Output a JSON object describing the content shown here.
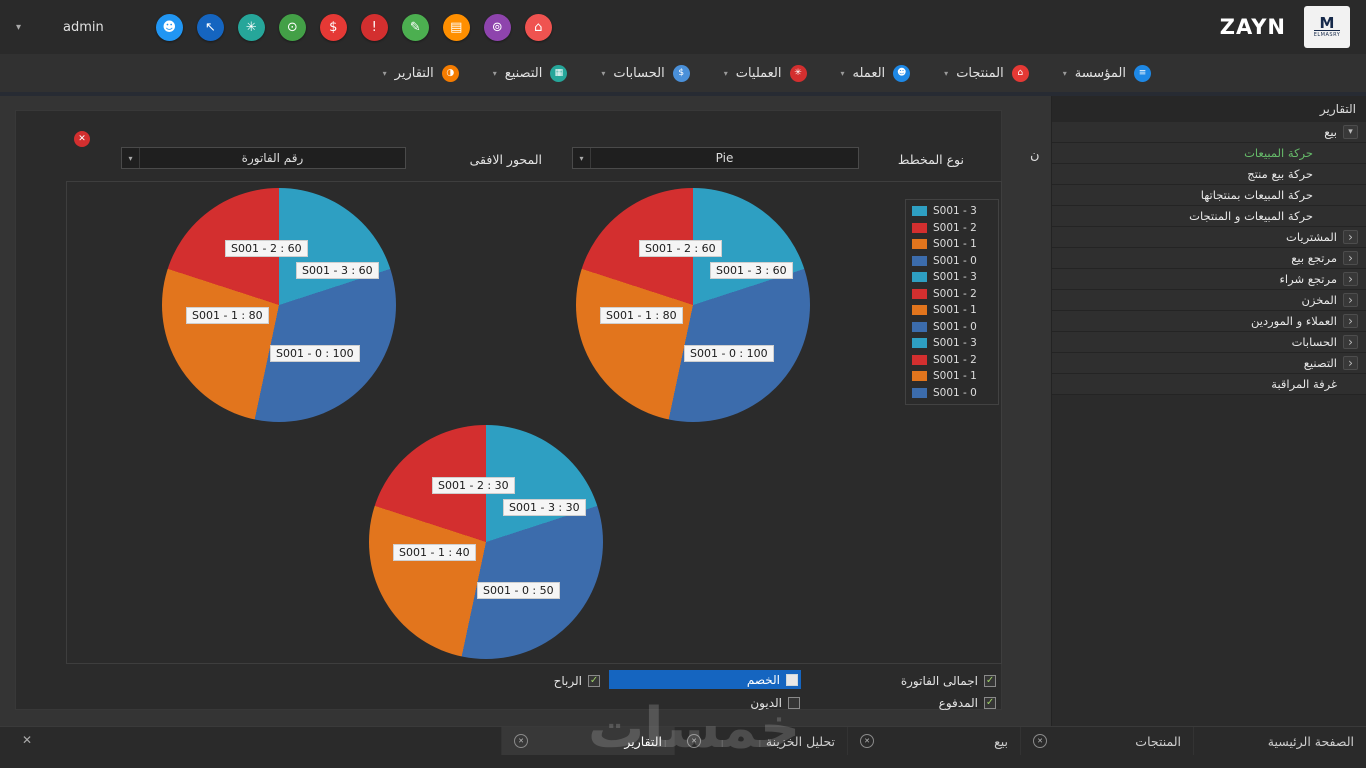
{
  "topbar": {
    "user": "admin",
    "brand": "ZAYN",
    "logo": {
      "letter": "M",
      "text": "ELMASRY"
    },
    "icons": [
      {
        "name": "user-icon",
        "glyph": "☻",
        "color": "#2196f3"
      },
      {
        "name": "cursor-icon",
        "glyph": "↖",
        "color": "#1565c0"
      },
      {
        "name": "asterisk-icon",
        "glyph": "✳",
        "color": "#26a69a"
      },
      {
        "name": "clock-icon",
        "glyph": "⊙",
        "color": "#43a047"
      },
      {
        "name": "currency-icon",
        "glyph": "$",
        "color": "#e53935"
      },
      {
        "name": "bell-icon",
        "glyph": "!",
        "color": "#d32f2f"
      },
      {
        "name": "edit-icon",
        "glyph": "✎",
        "color": "#4caf50"
      },
      {
        "name": "archive-icon",
        "glyph": "▤",
        "color": "#ff8f00"
      },
      {
        "name": "search-icon",
        "glyph": "⊚",
        "color": "#8e44ad"
      },
      {
        "name": "home-icon",
        "glyph": "⌂",
        "color": "#ef5350"
      }
    ]
  },
  "menubar": {
    "items": [
      {
        "label": "المؤسسة",
        "glyph": "≡",
        "color": "#1e88e5"
      },
      {
        "label": "المنتجات",
        "glyph": "⌂",
        "color": "#e53935"
      },
      {
        "label": "العمله",
        "glyph": "☻",
        "color": "#1e88e5"
      },
      {
        "label": "العمليات",
        "glyph": "✳",
        "color": "#d32f2f"
      },
      {
        "label": "الحسابات",
        "glyph": "$",
        "color": "#4a90d9"
      },
      {
        "label": "التصنيع",
        "glyph": "▦",
        "color": "#26a69a"
      },
      {
        "label": "التقارير",
        "glyph": "◑",
        "color": "#f57c00"
      }
    ]
  },
  "sidebar": {
    "title": "التقارير",
    "items": [
      {
        "label": "بيع"
      },
      {
        "label": "حركة المبيعات"
      },
      {
        "label": "حركة بيع منتج"
      },
      {
        "label": "حركة المبيعات بمنتجاتها"
      },
      {
        "label": "حركة المبيعات و المنتجات"
      },
      {
        "label": "المشتريات"
      },
      {
        "label": "مرتجع بيع"
      },
      {
        "label": "مرتجع شراء"
      },
      {
        "label": "المخزن"
      },
      {
        "label": "العملاء و الموردين"
      },
      {
        "label": "الحسابات"
      },
      {
        "label": "التصنيع"
      },
      {
        "label": "غرفة المراقبة"
      }
    ]
  },
  "panel": {
    "chart_type_label": "نوع المخطط",
    "chart_type_value": "Pie",
    "x_axis_label": "المحور الافقى",
    "x_axis_value": "رقم الفاتورة",
    "clipped_text": "ن",
    "filters": {
      "row1": [
        {
          "label": "اجمالى الفاتورة",
          "checked": true
        },
        {
          "label": "الخصم",
          "checked": false
        },
        {
          "label": "الرباح",
          "checked": true
        }
      ],
      "row2": [
        {
          "label": "المدفوع",
          "checked": true
        },
        {
          "label": "الديون",
          "checked": false
        }
      ]
    }
  },
  "chart_data": {
    "type": "pie",
    "series_prefix": "S001",
    "charts": [
      {
        "slices": [
          {
            "id": "S001 - 3",
            "value": 60,
            "label": "S001 - 3 : 60",
            "color": "#2e9fc2"
          },
          {
            "id": "S001 - 0",
            "value": 100,
            "label": "S001 - 0 : 100",
            "color": "#3c6cac"
          },
          {
            "id": "S001 - 1",
            "value": 80,
            "label": "S001 - 1 : 80",
            "color": "#e2751d"
          },
          {
            "id": "S001 - 2",
            "value": 60,
            "label": "S001 - 2 : 60",
            "color": "#d32f2f"
          }
        ]
      },
      {
        "slices": [
          {
            "id": "S001 - 3",
            "value": 60,
            "label": "S001 - 3 : 60",
            "color": "#2e9fc2"
          },
          {
            "id": "S001 - 0",
            "value": 100,
            "label": "S001 - 0 : 100",
            "color": "#3c6cac"
          },
          {
            "id": "S001 - 1",
            "value": 80,
            "label": "S001 - 1 : 80",
            "color": "#e2751d"
          },
          {
            "id": "S001 - 2",
            "value": 60,
            "label": "S001 - 2 : 60",
            "color": "#d32f2f"
          }
        ]
      },
      {
        "slices": [
          {
            "id": "S001 - 3",
            "value": 30,
            "label": "S001 - 3 : 30",
            "color": "#2e9fc2"
          },
          {
            "id": "S001 - 0",
            "value": 50,
            "label": "S001 - 0 : 50",
            "color": "#3c6cac"
          },
          {
            "id": "S001 - 1",
            "value": 40,
            "label": "S001 - 1 : 40",
            "color": "#e2751d"
          },
          {
            "id": "S001 - 2",
            "value": 30,
            "label": "S001 - 2 : 30",
            "color": "#d32f2f"
          }
        ]
      }
    ],
    "legend": [
      {
        "label": "S001 - 3",
        "color": "#2e9fc2"
      },
      {
        "label": "S001 - 2",
        "color": "#d32f2f"
      },
      {
        "label": "S001 - 1",
        "color": "#e2751d"
      },
      {
        "label": "S001 - 0",
        "color": "#3c6cac"
      },
      {
        "label": "S001 - 3",
        "color": "#2e9fc2"
      },
      {
        "label": "S001 - 2",
        "color": "#d32f2f"
      },
      {
        "label": "S001 - 1",
        "color": "#e2751d"
      },
      {
        "label": "S001 - 0",
        "color": "#3c6cac"
      },
      {
        "label": "S001 - 3",
        "color": "#2e9fc2"
      },
      {
        "label": "S001 - 2",
        "color": "#d32f2f"
      },
      {
        "label": "S001 - 1",
        "color": "#e2751d"
      },
      {
        "label": "S001 - 0",
        "color": "#3c6cac"
      }
    ]
  },
  "tabs": [
    {
      "label": "الصفحة الرئيسية"
    },
    {
      "label": "المنتجات"
    },
    {
      "label": "بيع"
    },
    {
      "label": "تحليل الخزينة"
    },
    {
      "label": "التقارير"
    }
  ],
  "watermark": "خمسات"
}
